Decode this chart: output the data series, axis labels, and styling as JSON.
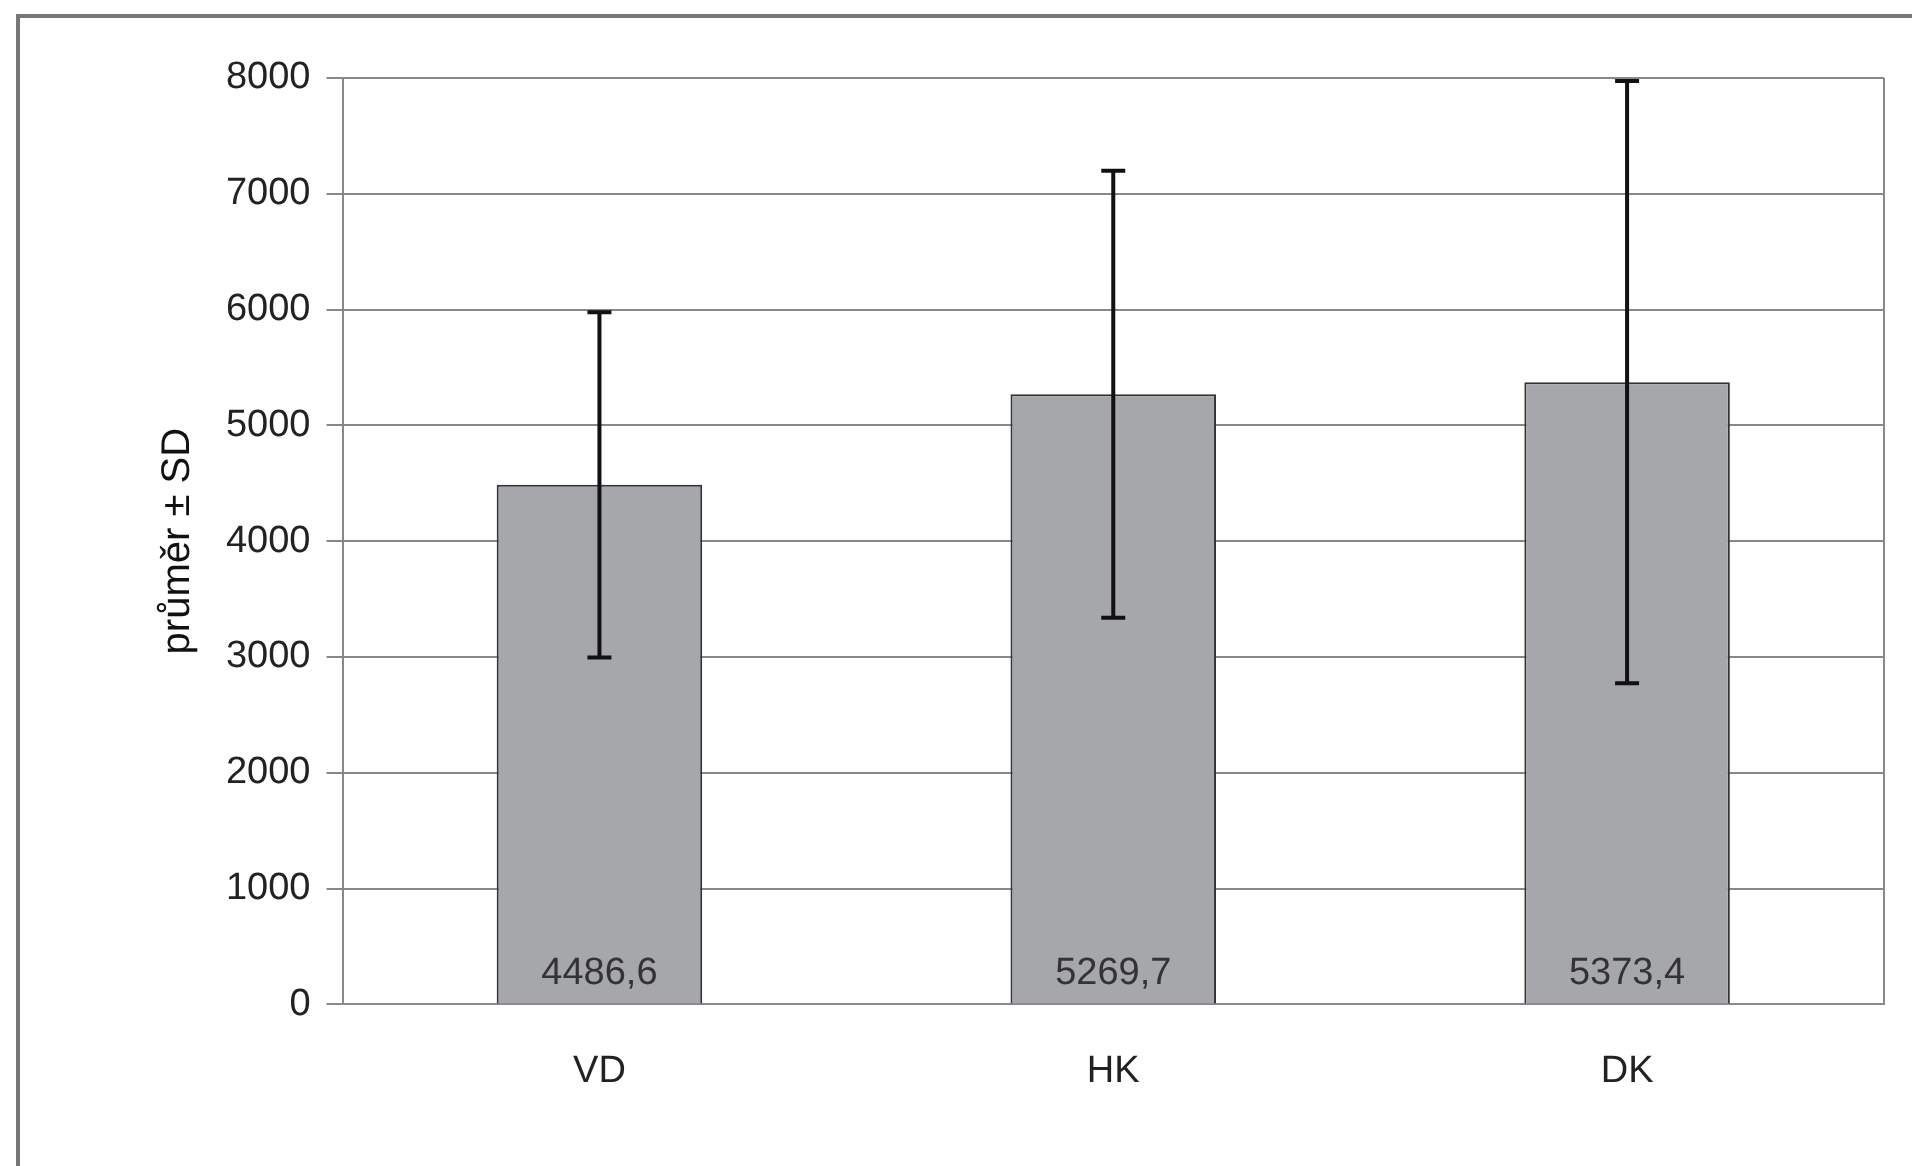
{
  "chart_data": {
    "type": "bar",
    "ylabel": "průměr ± SD",
    "categories": [
      "VD",
      "HK",
      "DK"
    ],
    "values": [
      4486.6,
      5269.7,
      5373.4
    ],
    "errors": [
      1490,
      1930,
      2600
    ],
    "value_labels": [
      "4486,6",
      "5269,7",
      "5373,4"
    ],
    "color": "#a6a7ab",
    "ylim": [
      0,
      8000
    ],
    "yticks": [
      0,
      1000,
      2000,
      3000,
      4000,
      5000,
      6000,
      7000,
      8000
    ],
    "grid": "y",
    "legend": false
  }
}
